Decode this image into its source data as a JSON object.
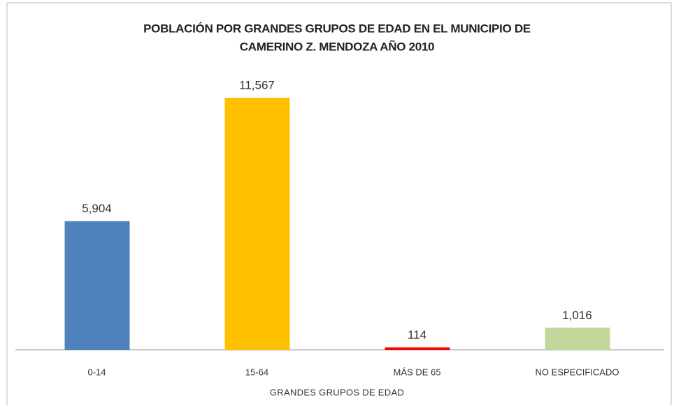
{
  "chart_data": {
    "type": "bar",
    "title": [
      "POBLACIÓN POR GRANDES GRUPOS DE EDAD EN EL MUNICIPIO DE",
      "CAMERINO Z. MENDOZA AÑO 2010"
    ],
    "x_label": "GRANDES GRUPOS DE EDAD",
    "categories": [
      "0-14",
      "15-64",
      "MÁS DE 65",
      "NO ESPECIFICADO"
    ],
    "values": [
      5904,
      11567,
      114,
      1016
    ],
    "value_labels": [
      "5,904",
      "11,567",
      "114",
      "1,016"
    ],
    "colors": [
      "#4f81bd",
      "#ffc000",
      "#ff0000",
      "#c3d69b"
    ]
  }
}
